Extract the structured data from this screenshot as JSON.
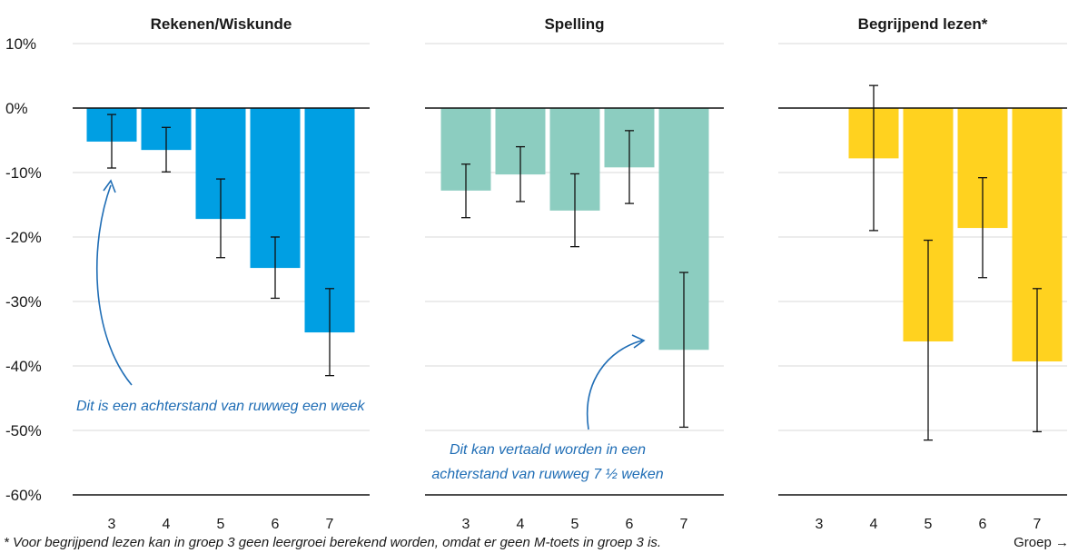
{
  "chart_data": {
    "type": "bar",
    "y_ticks": [
      "10%",
      "0%",
      "-10%",
      "-20%",
      "-30%",
      "-40%",
      "-50%",
      "-60%"
    ],
    "ylim": [
      -60,
      10
    ],
    "grid": true,
    "panels": [
      {
        "title": "Rekenen/Wiskunde",
        "color": "#009fe3",
        "categories": [
          "3",
          "4",
          "5",
          "6",
          "7"
        ],
        "values": [
          -5.2,
          -6.5,
          -17.2,
          -24.8,
          -34.8
        ],
        "error_low": [
          -9.3,
          -9.9,
          -23.2,
          -29.5,
          -41.5
        ],
        "error_high": [
          -1.0,
          -3.0,
          -11.0,
          -20.0,
          -28.0
        ]
      },
      {
        "title": "Spelling",
        "color": "#8ccdc0",
        "categories": [
          "3",
          "4",
          "5",
          "6",
          "7"
        ],
        "values": [
          -12.8,
          -10.3,
          -15.9,
          -9.2,
          -37.5
        ],
        "error_low": [
          -17.0,
          -14.5,
          -21.5,
          -14.8,
          -49.5
        ],
        "error_high": [
          -8.7,
          -6.0,
          -10.2,
          -3.5,
          -25.5
        ]
      },
      {
        "title": "Begrijpend lezen*",
        "color": "#ffd21f",
        "categories": [
          "3",
          "4",
          "5",
          "6",
          "7"
        ],
        "values": [
          null,
          -7.8,
          -36.2,
          -18.6,
          -39.3
        ],
        "error_low": [
          null,
          -19.0,
          -51.5,
          -26.3,
          -50.2
        ],
        "error_high": [
          null,
          3.5,
          -20.5,
          -10.8,
          -28.0
        ]
      }
    ],
    "annotations": [
      {
        "lines": [
          "Dit is een achterstand van ruwweg een week"
        ]
      },
      {
        "lines": [
          "Dit kan vertaald worden in een",
          "achterstand van ruwweg 7 ½ weken"
        ]
      }
    ]
  },
  "footnote": "* Voor begrijpend lezen kan in groep 3 geen leergroei berekend worden, omdat er geen M-toets in groep 3 is.",
  "x_axis_label": "Groep →"
}
